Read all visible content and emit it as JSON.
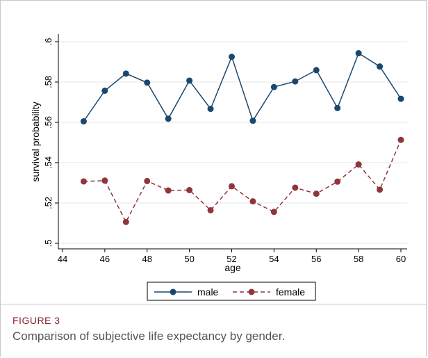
{
  "figure": {
    "label": "FIGURE 3",
    "caption": "Comparison of subjective life expectancy by gender."
  },
  "chart_data": {
    "type": "line",
    "title": "",
    "xlabel": "age",
    "ylabel": "survival probability",
    "xlim": [
      44,
      60
    ],
    "ylim": [
      0.5,
      0.6
    ],
    "xticks": [
      44,
      46,
      48,
      50,
      52,
      54,
      56,
      58,
      60
    ],
    "xtick_labels": [
      "44",
      "46",
      "48",
      "50",
      "52",
      "54",
      "56",
      "58",
      "60"
    ],
    "yticks": [
      0.5,
      0.52,
      0.54,
      0.56,
      0.58,
      0.6
    ],
    "ytick_labels": [
      ".5",
      ".52",
      ".54",
      ".56",
      ".58",
      ".6"
    ],
    "grid": true,
    "legend_position": "bottom",
    "x": [
      45,
      46,
      47,
      48,
      49,
      50,
      51,
      52,
      53,
      54,
      55,
      56,
      57,
      58,
      59,
      60
    ],
    "series": [
      {
        "name": "male",
        "color": "#1a476f",
        "line_style": "solid",
        "values": [
          0.5605,
          0.5757,
          0.5842,
          0.5797,
          0.5618,
          0.5807,
          0.5667,
          0.5925,
          0.5608,
          0.5775,
          0.5803,
          0.5859,
          0.5671,
          0.5943,
          0.5877,
          0.5717
        ]
      },
      {
        "name": "female",
        "color": "#90353b",
        "line_style": "dashed",
        "values": [
          0.5307,
          0.5311,
          0.5106,
          0.5309,
          0.5262,
          0.5264,
          0.5164,
          0.5283,
          0.5208,
          0.5156,
          0.5276,
          0.5246,
          0.5306,
          0.5391,
          0.5266,
          0.5513
        ]
      }
    ]
  }
}
